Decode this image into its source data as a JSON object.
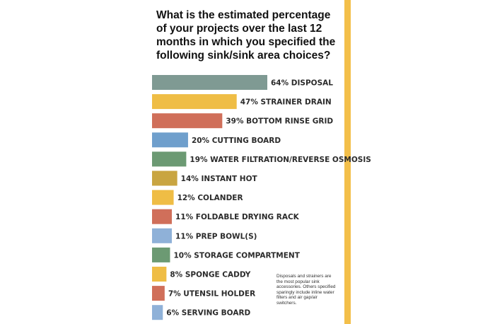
{
  "chart_data": {
    "type": "bar",
    "orientation": "horizontal",
    "title": "What is the estimated percentage of your projects over the last 12 months in which you specified the following sink/sink area choices?",
    "labels": [
      "64% DISPOSAL",
      "47% STRAINER DRAIN",
      "39% BOTTOM RINSE GRID",
      "20% CUTTING BOARD",
      "19% WATER FILTRATION/REVERSE OSMOSIS",
      "14% INSTANT HOT",
      "12% COLANDER",
      "11% FOLDABLE DRYING RACK",
      "11% PREP BOWL(S)",
      "10% STORAGE COMPARTMENT",
      "8% SPONGE CADDY",
      "7% UTENSIL HOLDER",
      "6% SERVING BOARD"
    ],
    "categories": [
      "DISPOSAL",
      "STRAINER DRAIN",
      "BOTTOM RINSE GRID",
      "CUTTING BOARD",
      "WATER FILTRATION/REVERSE OSMOSIS",
      "INSTANT HOT",
      "COLANDER",
      "FOLDABLE DRYING RACK",
      "PREP BOWL(S)",
      "STORAGE COMPARTMENT",
      "SPONGE CADDY",
      "UTENSIL HOLDER",
      "SERVING BOARD"
    ],
    "values": [
      64,
      47,
      39,
      20,
      19,
      14,
      12,
      11,
      11,
      10,
      8,
      7,
      6
    ],
    "colors": [
      "#7f9a93",
      "#efbd45",
      "#d06f5a",
      "#6f9fcc",
      "#6c9a73",
      "#c9a541",
      "#efbd45",
      "#d06f5a",
      "#8fb1d8",
      "#6c9a73",
      "#efbd45",
      "#d06f5a",
      "#8fb1d8"
    ],
    "xlim": [
      0,
      64
    ],
    "grid": false,
    "note": "Disposals and strainers are the most popular sink accessories. Others specified sparingly include inline water filters and air gap/air switchers."
  }
}
